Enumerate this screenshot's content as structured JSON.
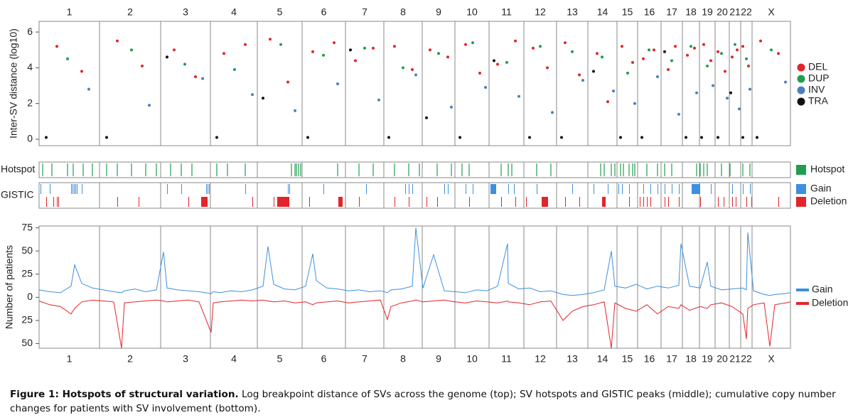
{
  "chart_data": [
    {
      "type": "scatter",
      "y_label": "Inter-SV distance (log10)",
      "chromosomes": [
        "1",
        "2",
        "3",
        "4",
        "5",
        "6",
        "7",
        "8",
        "9",
        "10",
        "11",
        "12",
        "13",
        "14",
        "15",
        "16",
        "17",
        "18",
        "19",
        "20",
        "21",
        "22",
        "X"
      ],
      "chromosome_bounds": [
        0,
        85,
        171,
        241,
        307,
        370,
        431,
        485,
        539,
        585,
        633,
        682,
        728,
        772,
        813,
        842,
        875,
        905,
        929,
        951,
        971,
        987,
        1003,
        1057
      ],
      "xlim": [
        0,
        1057
      ],
      "ylim": [
        -0.36,
        6.6
      ],
      "yticks": [
        0,
        2,
        4,
        6
      ],
      "legend": "right",
      "series": [
        {
          "name": "DEL",
          "color": "#e3242b",
          "x": [
            25,
            60,
            110,
            145,
            190,
            220,
            260,
            290,
            325,
            350,
            385,
            415,
            445,
            470,
            500,
            525,
            550,
            575,
            600,
            620,
            645,
            670,
            695,
            715,
            740,
            760,
            785,
            800,
            820,
            835,
            850,
            865,
            885,
            895,
            912,
            922,
            935,
            945,
            955,
            965,
            975,
            982,
            990,
            998,
            1015,
            1040
          ],
          "values": [
            5.2,
            3.8,
            5.5,
            4.1,
            5.0,
            3.5,
            4.8,
            5.3,
            5.6,
            3.2,
            4.9,
            5.4,
            4.4,
            5.1,
            5.2,
            3.9,
            5.0,
            4.6,
            5.3,
            3.7,
            4.2,
            5.5,
            5.1,
            4.0,
            5.4,
            3.6,
            4.8,
            2.1,
            5.2,
            4.3,
            4.5,
            5.0,
            3.9,
            5.2,
            4.7,
            5.1,
            5.3,
            4.4,
            4.9,
            3.8,
            4.6,
            5.0,
            5.2,
            4.1,
            5.5,
            4.8
          ]
        },
        {
          "name": "DUP",
          "color": "#1f9e4f",
          "x": [
            40,
            130,
            205,
            275,
            340,
            400,
            458,
            512,
            562,
            610,
            658,
            705,
            750,
            792,
            828,
            858,
            890,
            917,
            940,
            960,
            979,
            995,
            1030
          ],
          "values": [
            4.5,
            5.0,
            4.2,
            3.9,
            5.3,
            4.7,
            5.1,
            4.0,
            4.8,
            5.4,
            4.3,
            5.2,
            4.9,
            4.6,
            3.7,
            5.0,
            4.4,
            5.2,
            4.1,
            4.8,
            5.3,
            4.5,
            5.0
          ]
        },
        {
          "name": "INV",
          "color": "#4a7fc1",
          "x": [
            70,
            155,
            230,
            300,
            360,
            420,
            478,
            530,
            580,
            628,
            675,
            722,
            765,
            808,
            838,
            870,
            900,
            925,
            948,
            968,
            985,
            1000,
            1050
          ],
          "values": [
            2.8,
            1.9,
            3.4,
            2.5,
            1.6,
            3.1,
            2.2,
            3.6,
            1.8,
            2.9,
            2.4,
            1.5,
            3.3,
            2.7,
            2.0,
            3.5,
            1.4,
            2.6,
            3.0,
            2.3,
            1.7,
            2.8,
            3.2
          ]
        },
        {
          "name": "TRA",
          "color": "#111111",
          "x": [
            10,
            95,
            180,
            250,
            315,
            378,
            438,
            492,
            545,
            592,
            640,
            690,
            735,
            780,
            818,
            848,
            880,
            910,
            932,
            955,
            973,
            990,
            1010
          ],
          "values": [
            0.1,
            0.1,
            4.6,
            0.1,
            2.3,
            0.1,
            5.0,
            0.1,
            1.2,
            0.1,
            4.4,
            0.1,
            0.1,
            3.8,
            0.1,
            0.1,
            4.9,
            0.1,
            0.1,
            0.1,
            2.6,
            0.1,
            0.1
          ]
        }
      ]
    },
    {
      "type": "track",
      "label": "Hotspot",
      "xlim": [
        0,
        1057
      ],
      "series": [
        {
          "name": "Hotspot",
          "color": "#1f9e4f",
          "x": [
            5,
            18,
            40,
            48,
            62,
            75,
            95,
            110,
            130,
            150,
            165,
            185,
            200,
            215,
            250,
            265,
            290,
            355,
            360,
            362,
            365,
            368,
            420,
            450,
            470,
            500,
            520,
            535,
            560,
            580,
            595,
            605,
            650,
            660,
            665,
            700,
            720,
            790,
            795,
            805,
            810,
            818,
            822,
            830,
            835,
            838,
            855,
            870,
            880,
            890,
            925,
            930,
            935,
            940,
            960,
            972,
            990,
            1000
          ]
        }
      ]
    },
    {
      "type": "track",
      "label": "GISTIC",
      "xlim": [
        0,
        1057
      ],
      "series": [
        {
          "name": "Gain",
          "color": "#3d8fe0",
          "starts": [
            2,
            15,
            45,
            47,
            49,
            51,
            53,
            60,
            180,
            200,
            235,
            237,
            239,
            290,
            350,
            352,
            400,
            460,
            515,
            520,
            525,
            570,
            575,
            600,
            610,
            635,
            660,
            668,
            700,
            750,
            780,
            800,
            815,
            820,
            830,
            850,
            860,
            870,
            880,
            890,
            900,
            918,
            945,
            975,
            990,
            1000
          ],
          "ends": [
            3,
            16,
            46,
            48,
            50,
            52,
            54,
            61,
            181,
            201,
            236,
            238,
            240,
            291,
            351,
            353,
            401,
            461,
            516,
            521,
            526,
            571,
            576,
            601,
            611,
            643,
            661,
            669,
            701,
            751,
            781,
            801,
            816,
            821,
            831,
            851,
            861,
            871,
            881,
            891,
            901,
            930,
            946,
            976,
            991,
            1001
          ]
        },
        {
          "name": "Deletion",
          "color": "#e3242b",
          "starts": [
            10,
            20,
            25,
            27,
            110,
            140,
            210,
            228,
            300,
            330,
            335,
            380,
            421,
            450,
            500,
            520,
            545,
            560,
            605,
            650,
            670,
            685,
            707,
            740,
            760,
            792,
            830,
            845,
            850,
            855,
            860,
            880,
            885,
            900,
            930,
            955,
            963,
            975,
            980,
            995,
            1002,
            1040
          ],
          "ends": [
            11,
            21,
            26,
            28,
            111,
            141,
            211,
            237,
            301,
            331,
            352,
            381,
            427,
            451,
            501,
            521,
            546,
            561,
            606,
            651,
            671,
            686,
            716,
            741,
            761,
            797,
            831,
            846,
            851,
            856,
            861,
            881,
            886,
            901,
            931,
            956,
            964,
            976,
            981,
            996,
            1003,
            1041
          ]
        }
      ]
    },
    {
      "type": "line",
      "y_label": "Number of patients",
      "xlim": [
        0,
        1057
      ],
      "ylim": [
        -55,
        77
      ],
      "yticks": [
        75,
        50,
        25,
        0,
        {
          "value": -25,
          "label": "25"
        },
        {
          "value": -50,
          "label": "50"
        }
      ],
      "x": [
        0,
        15,
        30,
        45,
        50,
        60,
        75,
        90,
        105,
        116,
        120,
        135,
        150,
        165,
        175,
        180,
        195,
        210,
        225,
        242,
        245,
        255,
        270,
        285,
        300,
        315,
        322,
        330,
        345,
        360,
        375,
        385,
        390,
        405,
        420,
        435,
        450,
        465,
        480,
        490,
        495,
        510,
        525,
        530,
        540,
        555,
        570,
        585,
        600,
        615,
        630,
        645,
        659,
        660,
        675,
        690,
        705,
        720,
        737,
        750,
        765,
        780,
        795,
        805,
        810,
        825,
        840,
        855,
        870,
        885,
        900,
        903,
        915,
        930,
        940,
        945,
        960,
        975,
        990,
        995,
        997,
        1005,
        1020,
        1028,
        1035,
        1050,
        1057
      ],
      "series": [
        {
          "name": "Gain",
          "color": "#3d8fe0",
          "values": [
            8,
            6,
            5,
            12,
            35,
            15,
            10,
            8,
            6,
            5,
            7,
            9,
            6,
            8,
            49,
            10,
            8,
            7,
            6,
            4,
            6,
            5,
            7,
            6,
            8,
            12,
            55,
            14,
            9,
            8,
            12,
            47,
            18,
            10,
            9,
            7,
            8,
            6,
            7,
            5,
            8,
            9,
            12,
            75,
            10,
            46,
            7,
            6,
            5,
            8,
            7,
            12,
            58,
            15,
            9,
            10,
            6,
            7,
            3,
            2,
            3,
            5,
            8,
            50,
            12,
            10,
            14,
            9,
            12,
            10,
            13,
            58,
            12,
            10,
            38,
            12,
            8,
            9,
            10,
            8,
            70,
            7,
            3,
            2,
            3,
            4,
            5
          ]
        },
        {
          "name": "Deletion",
          "color": "#e3242b",
          "values": [
            -4,
            -8,
            -10,
            -18,
            -12,
            -5,
            -3,
            -4,
            -5,
            -55,
            -6,
            -5,
            -4,
            -3,
            -4,
            -5,
            -4,
            -3,
            -5,
            -38,
            -6,
            -5,
            -4,
            -3,
            -4,
            -3,
            -4,
            -5,
            -4,
            -6,
            -5,
            -8,
            -6,
            -5,
            -4,
            -6,
            -5,
            -4,
            -3,
            -24,
            -10,
            -6,
            -4,
            -3,
            -5,
            -4,
            -3,
            -5,
            -6,
            -4,
            -5,
            -6,
            -4,
            -5,
            -6,
            -8,
            -5,
            -4,
            -25,
            -15,
            -10,
            -8,
            -5,
            -55,
            -6,
            -12,
            -15,
            -8,
            -18,
            -10,
            -12,
            -8,
            -14,
            -10,
            -12,
            -8,
            -6,
            -10,
            -18,
            -45,
            -12,
            -8,
            -6,
            -53,
            -8,
            -6,
            -5
          ]
        }
      ]
    }
  ],
  "caption": {
    "title": "Figure 1: Hotspots of structural variation.",
    "text": "Log breakpoint distance of SVs across the genome (top); SV hotspots and GISTIC peaks (middle); cumulative copy number changes for patients with SV involvement (bottom)."
  }
}
